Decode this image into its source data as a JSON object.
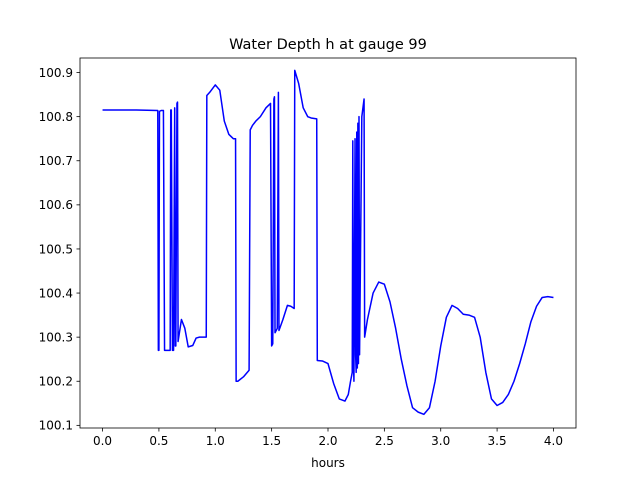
{
  "chart_data": {
    "type": "line",
    "title": "Water Depth h at gauge 99",
    "xlabel": "hours",
    "ylabel": "",
    "xlim": [
      -0.2,
      4.2
    ],
    "ylim": [
      100.094,
      100.933
    ],
    "xticks": [
      0.0,
      0.5,
      1.0,
      1.5,
      2.0,
      2.5,
      3.0,
      3.5,
      4.0
    ],
    "xtick_labels": [
      "0.0",
      "0.5",
      "1.0",
      "1.5",
      "2.0",
      "2.5",
      "3.0",
      "3.5",
      "4.0"
    ],
    "yticks": [
      100.1,
      100.2,
      100.3,
      100.4,
      100.5,
      100.6,
      100.7,
      100.8,
      100.9
    ],
    "ytick_labels": [
      "100.1",
      "100.2",
      "100.3",
      "100.4",
      "100.5",
      "100.6",
      "100.7",
      "100.8",
      "100.9"
    ],
    "grid": false,
    "series": [
      {
        "color": "#0000ff",
        "x": [
          0.0,
          0.3,
          0.49,
          0.495,
          0.5,
          0.505,
          0.52,
          0.54,
          0.55,
          0.555,
          0.6,
          0.605,
          0.61,
          0.62,
          0.63,
          0.64,
          0.645,
          0.65,
          0.66,
          0.665,
          0.67,
          0.7,
          0.73,
          0.76,
          0.8,
          0.83,
          0.86,
          0.9,
          0.92,
          0.925,
          0.95,
          1.0,
          1.04,
          1.08,
          1.12,
          1.16,
          1.18,
          1.185,
          1.2,
          1.25,
          1.3,
          1.31,
          1.33,
          1.36,
          1.4,
          1.45,
          1.49,
          1.5,
          1.51,
          1.52,
          1.525,
          1.53,
          1.55,
          1.56,
          1.565,
          1.6,
          1.64,
          1.67,
          1.7,
          1.705,
          1.74,
          1.78,
          1.82,
          1.85,
          1.9,
          1.905,
          1.95,
          2.0,
          2.05,
          2.1,
          2.15,
          2.18,
          2.2,
          2.215,
          2.22,
          2.225,
          2.23,
          2.24,
          2.245,
          2.25,
          2.255,
          2.26,
          2.265,
          2.27,
          2.275,
          2.28,
          2.3,
          2.32,
          2.325,
          2.35,
          2.4,
          2.45,
          2.5,
          2.55,
          2.6,
          2.65,
          2.7,
          2.75,
          2.8,
          2.85,
          2.9,
          2.95,
          3.0,
          3.05,
          3.1,
          3.15,
          3.2,
          3.25,
          3.3,
          3.35,
          3.4,
          3.45,
          3.5,
          3.55,
          3.6,
          3.65,
          3.7,
          3.75,
          3.8,
          3.85,
          3.9,
          3.95,
          4.0
        ],
        "y": [
          100.815,
          100.815,
          100.814,
          100.27,
          100.27,
          100.812,
          100.814,
          100.814,
          100.27,
          100.27,
          100.27,
          100.815,
          100.815,
          100.27,
          100.27,
          100.82,
          100.28,
          100.28,
          100.83,
          100.833,
          100.29,
          100.34,
          100.32,
          100.278,
          100.281,
          100.298,
          100.3,
          100.3,
          100.3,
          100.848,
          100.855,
          100.872,
          100.86,
          100.79,
          100.76,
          100.75,
          100.75,
          100.2,
          100.2,
          100.21,
          100.225,
          100.77,
          100.78,
          100.79,
          100.8,
          100.82,
          100.83,
          100.28,
          100.285,
          100.84,
          100.845,
          100.31,
          100.32,
          100.855,
          100.315,
          100.34,
          100.372,
          100.37,
          100.365,
          100.905,
          100.875,
          100.82,
          100.8,
          100.797,
          100.795,
          100.247,
          100.246,
          100.24,
          100.195,
          100.16,
          100.155,
          100.17,
          100.2,
          100.22,
          100.745,
          100.25,
          100.2,
          100.75,
          100.26,
          100.22,
          100.765,
          100.23,
          100.785,
          100.24,
          100.8,
          100.26,
          100.8,
          100.84,
          100.3,
          100.34,
          100.4,
          100.425,
          100.42,
          100.38,
          100.32,
          100.25,
          100.19,
          100.14,
          100.13,
          100.125,
          100.14,
          100.2,
          100.28,
          100.345,
          100.372,
          100.365,
          100.352,
          100.35,
          100.345,
          100.3,
          100.22,
          100.16,
          100.145,
          100.152,
          100.17,
          100.2,
          100.24,
          100.285,
          100.335,
          100.37,
          100.39,
          100.392,
          100.39
        ]
      }
    ]
  }
}
